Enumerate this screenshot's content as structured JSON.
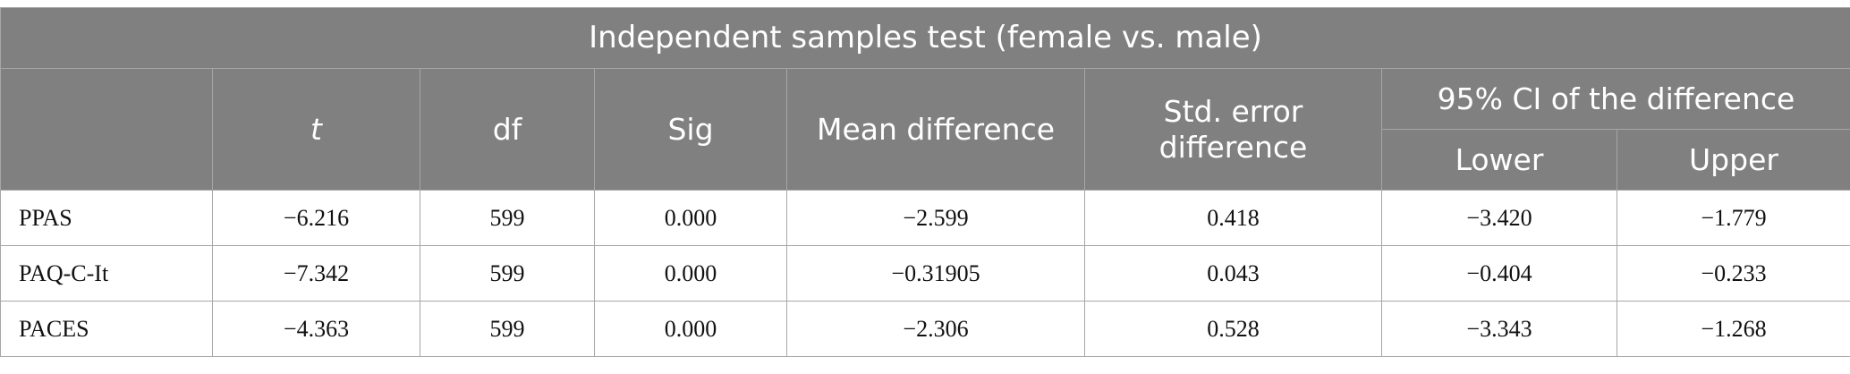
{
  "table": {
    "title": "Independent samples test (female vs. male)",
    "headers": {
      "t": "t",
      "df": "df",
      "sig": "Sig",
      "mean_diff": "Mean difference",
      "std_err": "Std. error difference",
      "ci_group": "95% CI of the difference",
      "lower": "Lower",
      "upper": "Upper"
    },
    "rows": [
      {
        "label": "PPAS",
        "t": "−6.216",
        "df": "599",
        "sig": "0.000",
        "mean_diff": "−2.599",
        "std_err": "0.418",
        "lower": "−3.420",
        "upper": "−1.779"
      },
      {
        "label": "PAQ-C-It",
        "t": "−7.342",
        "df": "599",
        "sig": "0.000",
        "mean_diff": "−0.31905",
        "std_err": "0.043",
        "lower": "−0.404",
        "upper": "−0.233"
      },
      {
        "label": "PACES",
        "t": "−4.363",
        "df": "599",
        "sig": "0.000",
        "mean_diff": "−2.306",
        "std_err": "0.528",
        "lower": "−3.343",
        "upper": "−1.268"
      }
    ]
  },
  "colors": {
    "header_bg": "#808080",
    "header_text": "#ffffff",
    "border": "#a6a6a6"
  }
}
